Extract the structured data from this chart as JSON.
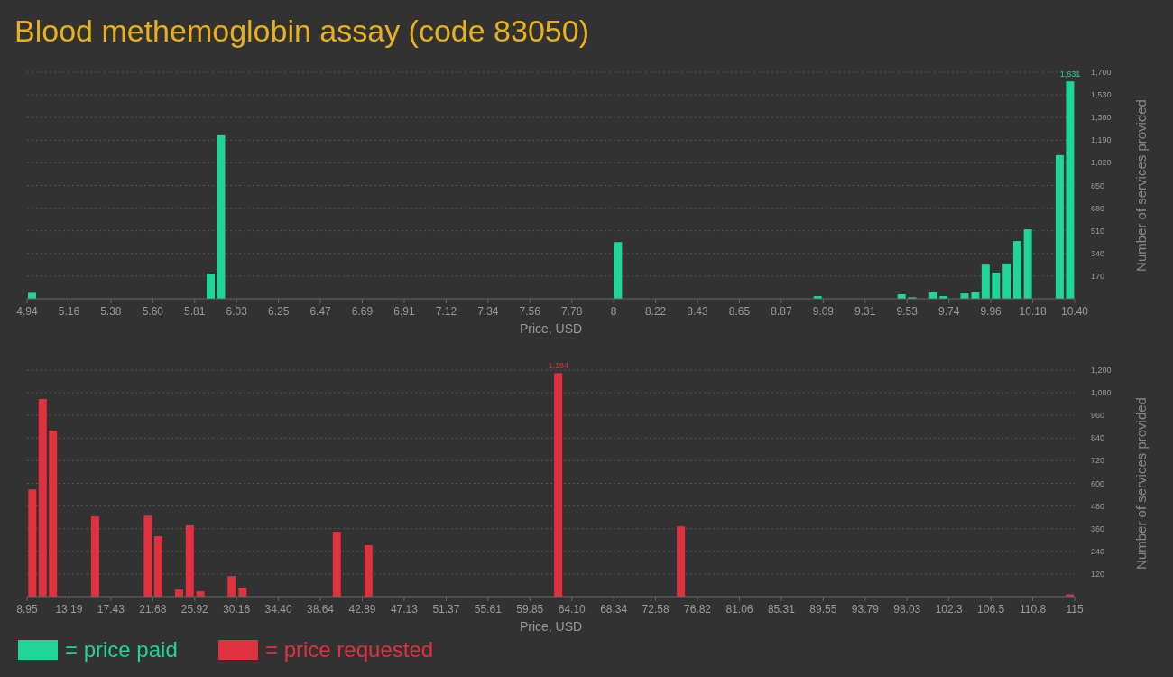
{
  "chart_data": [
    {
      "type": "bar",
      "title": "Blood methemoglobin assay (code 83050)",
      "xlabel": "Price, USD",
      "ylabel": "Number of services provided",
      "x": [
        4.966,
        5.897,
        5.951,
        8.02,
        9.061,
        9.498,
        9.553,
        9.663,
        9.717,
        9.826,
        9.882,
        9.936,
        9.99,
        10.046,
        10.101,
        10.156,
        10.322,
        10.376
      ],
      "series": [
        {
          "name": "= price paid",
          "color": "#1fd598",
          "values": [
            45,
            189,
            1227,
            425,
            20,
            34,
            11,
            48,
            20,
            40,
            48,
            256,
            197,
            265,
            433,
            521,
            1078,
            1631
          ],
          "value_labels": [
            null,
            null,
            null,
            null,
            null,
            null,
            null,
            null,
            null,
            null,
            null,
            null,
            null,
            null,
            null,
            null,
            null,
            "1,631"
          ]
        }
      ],
      "xlim": [
        4.94,
        10.4
      ],
      "xticks": [
        4.94,
        {
          "value": 5.1584,
          "label": "5.16"
        },
        {
          "value": 5.3768,
          "label": "5.38"
        },
        {
          "value": 5.5952,
          "label": "5.60"
        },
        {
          "value": 5.8136,
          "label": "5.81"
        },
        {
          "value": 6.032,
          "label": "6.03"
        },
        {
          "value": 6.2504,
          "label": "6.25"
        },
        {
          "value": 6.4688,
          "label": "6.47"
        },
        {
          "value": 6.6872,
          "label": "6.69"
        },
        {
          "value": 6.9056,
          "label": "6.91"
        },
        {
          "value": 7.124,
          "label": "7.12"
        },
        {
          "value": 7.3424,
          "label": "7.34"
        },
        {
          "value": 7.5608,
          "label": "7.56"
        },
        {
          "value": 7.7792,
          "label": "7.78"
        },
        {
          "value": 7.9976,
          "label": "8"
        },
        {
          "value": 8.216,
          "label": "8.22"
        },
        {
          "value": 8.4344,
          "label": "8.43"
        },
        {
          "value": 8.6528,
          "label": "8.65"
        },
        {
          "value": 8.8712,
          "label": "8.87"
        },
        {
          "value": 9.0896,
          "label": "9.09"
        },
        {
          "value": 9.308,
          "label": "9.31"
        },
        {
          "value": 9.5264,
          "label": "9.53"
        },
        {
          "value": 9.7448,
          "label": "9.74"
        },
        {
          "value": 9.9632,
          "label": "9.96"
        },
        {
          "value": 10.1816,
          "label": "10.18"
        },
        {
          "value": 10.4,
          "label": "10.40"
        }
      ],
      "ylim": [
        0,
        1700
      ],
      "yticks": [
        {
          "value": 170,
          "label": "170"
        },
        {
          "value": 340,
          "label": "340"
        },
        {
          "value": 510,
          "label": "510"
        },
        {
          "value": 680,
          "label": "680"
        },
        {
          "value": 850,
          "label": "850"
        },
        {
          "value": 1020,
          "label": "1,020"
        },
        {
          "value": 1190,
          "label": "1,190"
        },
        {
          "value": 1360,
          "label": "1,360"
        },
        {
          "value": 1530,
          "label": "1,530"
        },
        {
          "value": 1700,
          "label": "1,700"
        }
      ],
      "grid": "y",
      "legend": "bottom left"
    },
    {
      "type": "bar",
      "xlabel": "Price, USD",
      "ylabel": "Number of services provided",
      "x": [
        9.48,
        10.53,
        11.57,
        15.84,
        21.18,
        22.23,
        24.34,
        25.42,
        26.49,
        29.66,
        30.77,
        40.31,
        43.51,
        62.72,
        75.14,
        114.5
      ],
      "series": [
        {
          "name": "= price requested",
          "color": "#e0313f",
          "values": [
            568,
            1047,
            880,
            425,
            429,
            320,
            38,
            378,
            28,
            109,
            48,
            344,
            272,
            1184,
            372,
            12
          ],
          "value_labels": [
            null,
            null,
            null,
            null,
            null,
            null,
            null,
            null,
            null,
            null,
            null,
            null,
            null,
            "1,184",
            null,
            null
          ]
        }
      ],
      "xlim": [
        8.95,
        115
      ],
      "xticks": [
        8.95,
        {
          "value": 13.192,
          "label": "13.19"
        },
        {
          "value": 17.434,
          "label": "17.43"
        },
        {
          "value": 21.676,
          "label": "21.68"
        },
        {
          "value": 25.918,
          "label": "25.92"
        },
        30.16,
        {
          "value": 34.402,
          "label": "34.40"
        },
        38.64,
        {
          "value": 42.886,
          "label": "42.89"
        },
        {
          "value": 47.128,
          "label": "47.13"
        },
        51.37,
        {
          "value": 55.612,
          "label": "55.61"
        },
        {
          "value": 59.854,
          "label": "59.85"
        },
        {
          "value": 64.096,
          "label": "64.10"
        },
        {
          "value": 68.338,
          "label": "68.34"
        },
        72.58,
        {
          "value": 76.822,
          "label": "76.82"
        },
        {
          "value": 81.064,
          "label": "81.06"
        },
        {
          "value": 85.306,
          "label": "85.31"
        },
        {
          "value": 89.548,
          "label": "89.55"
        },
        93.79,
        {
          "value": 98.032,
          "label": "98.03"
        },
        {
          "value": 102.274,
          "label": "102.3"
        },
        {
          "value": 106.516,
          "label": "106.5"
        },
        {
          "value": 110.758,
          "label": "110.8"
        },
        115
      ],
      "ylim": [
        0,
        1200
      ],
      "yticks": [
        120,
        240,
        360,
        480,
        600,
        720,
        840,
        960,
        {
          "value": 1080,
          "label": "1,080"
        },
        {
          "value": 1200,
          "label": "1,200"
        }
      ],
      "grid": "y",
      "legend": "bottom left"
    }
  ]
}
